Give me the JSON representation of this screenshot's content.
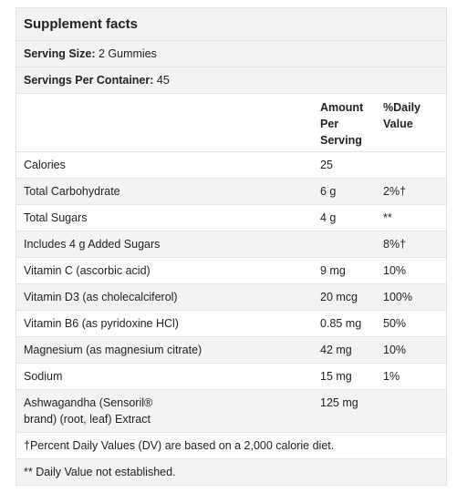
{
  "title": "Supplement facts",
  "serving_size": {
    "label": "Serving Size:",
    "value": "2 Gummies"
  },
  "servings_per_container": {
    "label": "Servings Per Container:",
    "value": "45"
  },
  "columns": {
    "amount": "Amount Per Serving",
    "dv": "%Daily Value"
  },
  "nutrients": [
    {
      "name": "Calories",
      "amount": "25",
      "dv": ""
    },
    {
      "name": "Total Carbohydrate",
      "amount": "6 g",
      "dv": "2%†"
    },
    {
      "name": "Total Sugars",
      "amount": "4 g",
      "dv": "**"
    },
    {
      "name": "Includes 4 g Added Sugars",
      "amount": "",
      "dv": "8%†"
    },
    {
      "name": "Vitamin C (ascorbic acid)",
      "amount": "9 mg",
      "dv": "10%"
    },
    {
      "name": "Vitamin D3 (as cholecalciferol)",
      "amount": "20 mcg",
      "dv": "100%"
    },
    {
      "name": "Vitamin B6 (as pyridoxine HCl)",
      "amount": "0.85 mg",
      "dv": "50%"
    },
    {
      "name": "Magnesium (as magnesium citrate)",
      "amount": "42 mg",
      "dv": "10%"
    },
    {
      "name": "Sodium",
      "amount": "15 mg",
      "dv": "1%"
    },
    {
      "name": "Ashwagandha (Sensoril® brand) (root, leaf) Extract",
      "amount": "125 mg",
      "dv": ""
    }
  ],
  "footnotes": [
    "†Percent Daily Values (DV) are based on a 2,000 calorie diet.",
    "** Daily Value not established."
  ]
}
